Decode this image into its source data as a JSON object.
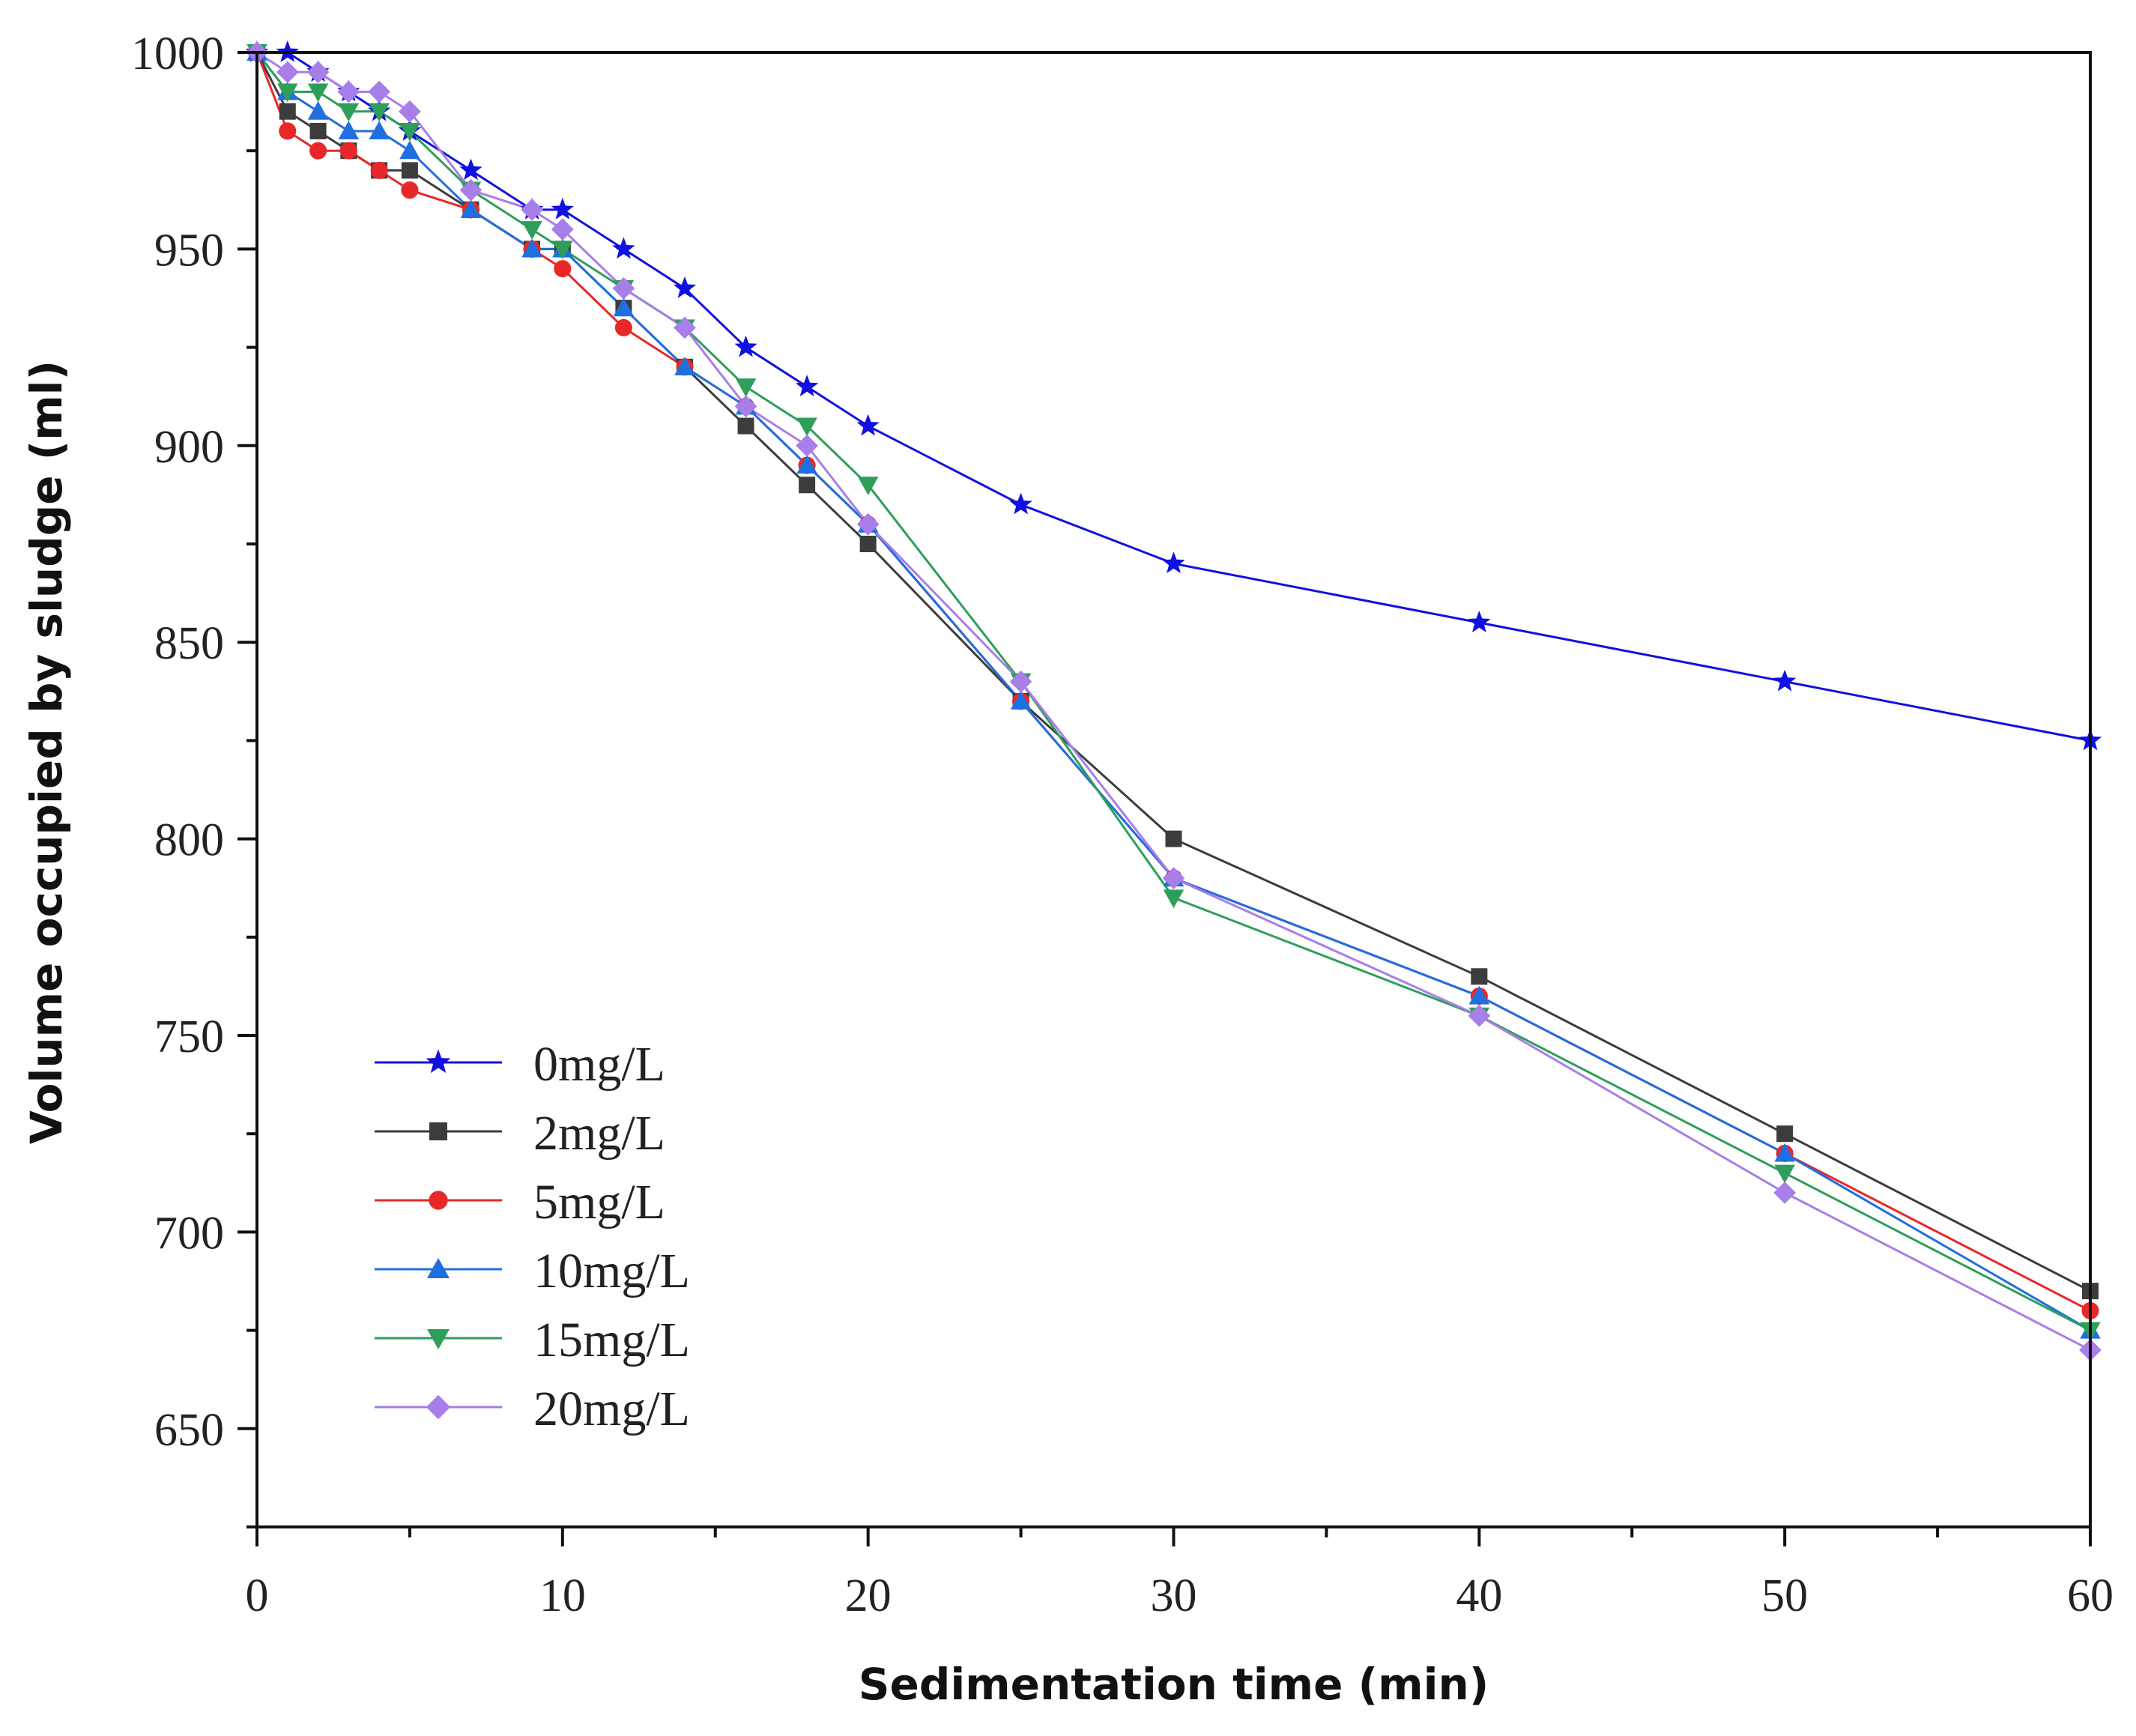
{
  "chart_data": {
    "type": "line",
    "title": "",
    "xlabel": "Sedimentation time (min)",
    "ylabel": "Volume occupied by sludge  (ml)",
    "xlim": [
      0,
      60
    ],
    "ylim": [
      625,
      1000
    ],
    "xticks": [
      0,
      10,
      20,
      30,
      40,
      50,
      60
    ],
    "yticks": [
      650,
      700,
      750,
      800,
      850,
      900,
      950,
      1000
    ],
    "x": [
      0,
      1,
      2,
      3,
      4,
      5,
      7,
      9,
      10,
      12,
      14,
      16,
      18,
      20,
      25,
      30,
      40,
      50,
      60
    ],
    "grid": false,
    "legend_position": "bottom-left",
    "series": [
      {
        "name": "0mg/L",
        "color": "#1010e0",
        "marker": "star",
        "values": [
          1000,
          1000,
          995,
          990,
          985,
          980,
          970,
          960,
          960,
          950,
          940,
          925,
          915,
          905,
          885,
          870,
          855,
          840,
          825
        ]
      },
      {
        "name": "2mg/L",
        "color": "#3c3c3c",
        "marker": "square",
        "values": [
          1000,
          985,
          980,
          975,
          970,
          970,
          960,
          950,
          950,
          935,
          920,
          905,
          890,
          875,
          835,
          800,
          765,
          725,
          685
        ]
      },
      {
        "name": "5mg/L",
        "color": "#e82828",
        "marker": "circle",
        "values": [
          1000,
          980,
          975,
          975,
          970,
          965,
          960,
          950,
          945,
          930,
          920,
          910,
          895,
          880,
          835,
          790,
          760,
          720,
          680
        ]
      },
      {
        "name": "10mg/L",
        "color": "#1f6fe0",
        "marker": "triangle-up",
        "values": [
          1000,
          990,
          985,
          980,
          980,
          975,
          960,
          950,
          950,
          935,
          920,
          910,
          895,
          880,
          835,
          790,
          760,
          720,
          675
        ]
      },
      {
        "name": "15mg/L",
        "color": "#2e9e5a",
        "marker": "triangle-down",
        "values": [
          1000,
          990,
          990,
          985,
          985,
          980,
          965,
          955,
          950,
          940,
          930,
          915,
          905,
          890,
          840,
          785,
          755,
          715,
          675
        ]
      },
      {
        "name": "20mg/L",
        "color": "#a87ee8",
        "marker": "diamond",
        "values": [
          1000,
          995,
          995,
          990,
          990,
          985,
          965,
          960,
          955,
          940,
          930,
          910,
          900,
          880,
          840,
          790,
          755,
          710,
          670
        ]
      }
    ]
  }
}
